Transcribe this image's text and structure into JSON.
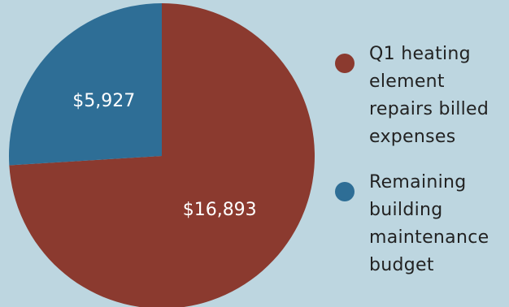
{
  "chart_data": {
    "type": "pie",
    "title": "",
    "start_angle_deg": 0,
    "direction": "clockwise",
    "slices": [
      {
        "name": "Q1 heating element repairs billed expenses",
        "value": 16893,
        "label": "$16,893",
        "color": "#8b3a2f"
      },
      {
        "name": "Remaining building maintenance budget",
        "value": 5927,
        "label": "$5,927",
        "color": "#2e6e96"
      }
    ],
    "legend": {
      "position": "right",
      "items": [
        {
          "label": "Q1 heating element repairs billed expenses",
          "color": "#8b3a2f"
        },
        {
          "label": "Remaining building maintenance budget",
          "color": "#2e6e96"
        }
      ]
    }
  }
}
